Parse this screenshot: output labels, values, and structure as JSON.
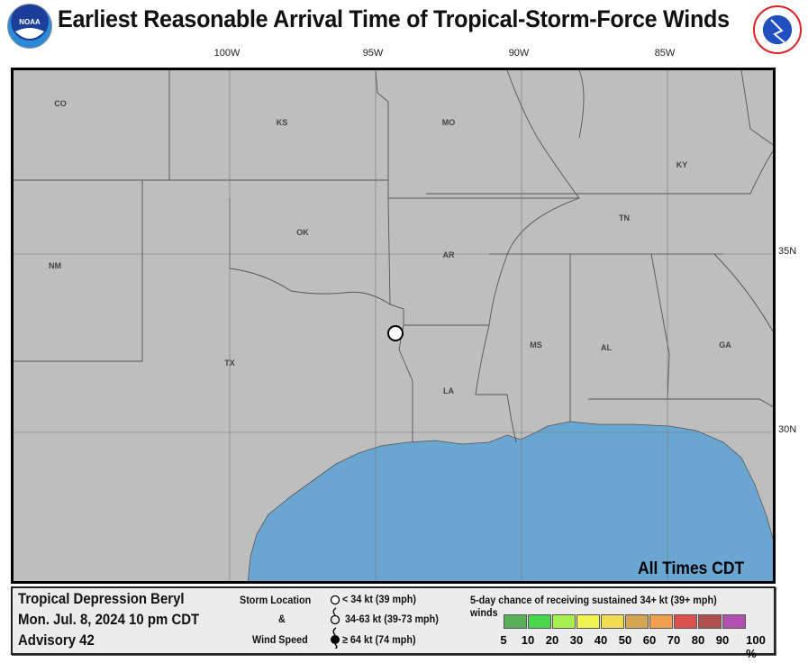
{
  "header": {
    "title": "Earliest Reasonable Arrival Time of Tropical-Storm-Force Winds",
    "logo_left": "NOAA",
    "logo_right": "National Weather Service"
  },
  "map": {
    "lon_labels": [
      "100W",
      "95W",
      "90W",
      "85W"
    ],
    "lat_labels": [
      "35N",
      "30N"
    ],
    "states": [
      "CO",
      "KS",
      "MO",
      "KY",
      "TN",
      "NM",
      "OK",
      "AR",
      "TX",
      "MS",
      "AL",
      "GA",
      "LA"
    ],
    "timezone_note": "All Times CDT",
    "colors": {
      "land": "#bebebe",
      "water": "#6aa6d2",
      "border": "#555555"
    },
    "storm_marker": "circle-below-34kt"
  },
  "legend": {
    "storm_name": "Tropical Depression Beryl",
    "datetime": "Mon. Jul. 8, 2024  10 pm CDT",
    "advisory": "Advisory 42",
    "storm_location": "Storm Location",
    "amp": "&",
    "wind_speed": "Wind Speed",
    "keys": [
      "< 34 kt (39 mph)",
      "34-63 kt (39-73 mph)",
      "≥ 64 kt (74 mph)"
    ],
    "probability_title": "5-day chance of receiving sustained 34+ kt (39+ mph) winds",
    "probability_labels": [
      "5",
      "10",
      "20",
      "30",
      "40",
      "50",
      "60",
      "70",
      "80",
      "90",
      "100 %"
    ],
    "probability_colors": [
      "#5aae5a",
      "#4cd64c",
      "#a8f050",
      "#f3f350",
      "#f2dc50",
      "#d4a552",
      "#f2a050",
      "#dc5050",
      "#b05050",
      "#b050b0"
    ]
  }
}
